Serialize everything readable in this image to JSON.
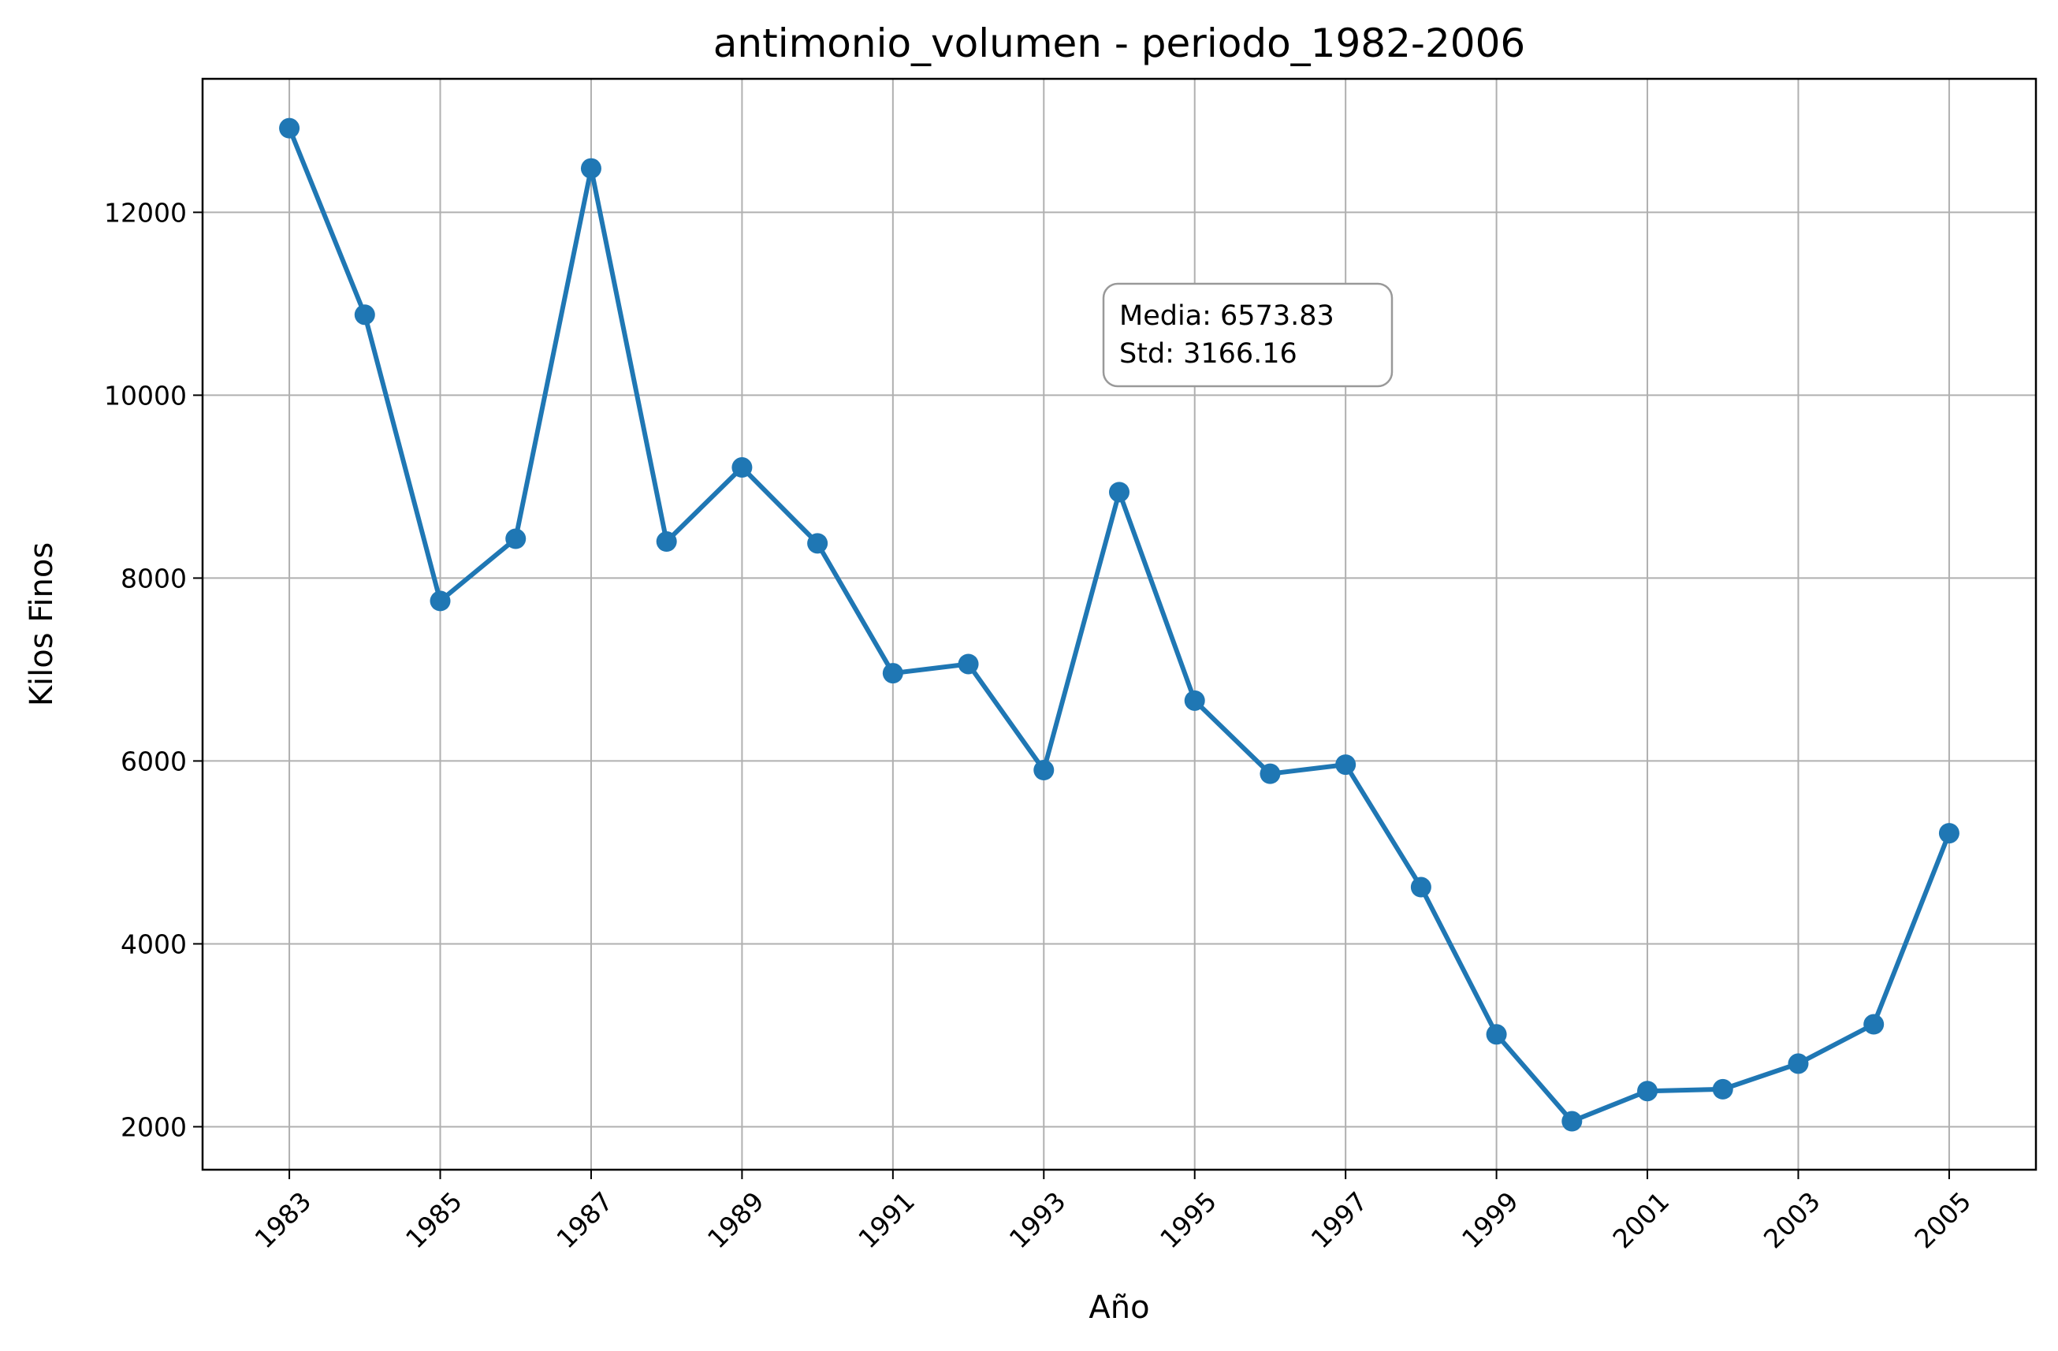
{
  "chart_data": {
    "type": "line",
    "title": "antimonio_volumen - periodo_1982-2006",
    "xlabel": "Año",
    "ylabel": "Kilos Finos",
    "x": [
      1983,
      1984,
      1985,
      1986,
      1987,
      1988,
      1989,
      1990,
      1991,
      1992,
      1993,
      1994,
      1995,
      1996,
      1997,
      1998,
      1999,
      2000,
      2001,
      2002,
      2003,
      2004,
      2005
    ],
    "series": [
      {
        "values": [
          12920,
          10880,
          7750,
          8430,
          12480,
          8400,
          9210,
          8380,
          6960,
          7060,
          5900,
          8940,
          6660,
          5860,
          5960,
          4620,
          3010,
          2060,
          2390,
          2410,
          2690,
          3120,
          5210
        ],
        "color": "#1f77b4"
      }
    ],
    "xlim": [
      1981.85,
      2006.15
    ],
    "ylim": [
      1530,
      13460
    ],
    "xticks": [
      1983,
      1985,
      1987,
      1989,
      1991,
      1993,
      1995,
      1997,
      1999,
      2001,
      2003,
      2005
    ],
    "yticks": [
      2000,
      4000,
      6000,
      8000,
      10000,
      12000
    ],
    "grid": true,
    "annotation": {
      "line1": "Media: 6573.83",
      "line2": "Std: 3166.16"
    }
  }
}
